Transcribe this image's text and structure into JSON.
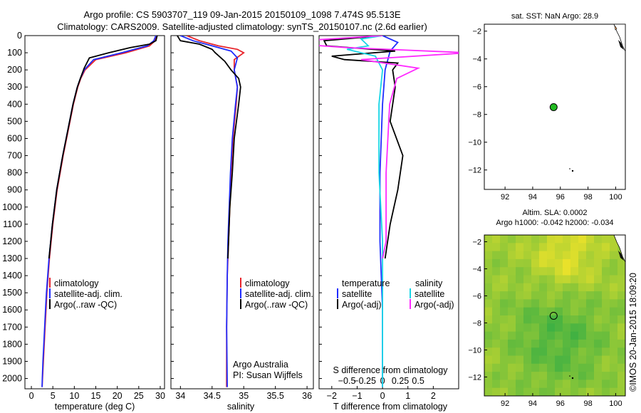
{
  "header": {
    "line1": "Argo profile: CS 5903707_119 09-Jan-2015 20150109_1098 7.474S 95.513E",
    "line2": "Climatology: CARS2009. Satellite-adjusted climatology: synTS_20150107.nc (2.6d earlier)"
  },
  "credit": "©IMOS 20-Jan-2015 18:09:20",
  "colors": {
    "climatology": "#e8232a",
    "satellite": "#1f2cff",
    "argo": "#000000",
    "sat_salinity": "#18d6e6",
    "argo_salinity": "#ff29ff"
  },
  "chart_data": [
    {
      "type": "line",
      "name": "temperature-profile",
      "xlabel": "temperature (deg C)",
      "ylabel": "",
      "xlim": [
        -1.5,
        31
      ],
      "ylim": [
        2060,
        0
      ],
      "xticks": [
        0,
        5,
        10,
        15,
        20,
        25,
        30
      ],
      "yticks": [
        0,
        100,
        200,
        300,
        400,
        500,
        600,
        700,
        800,
        900,
        1000,
        1100,
        1200,
        1300,
        1400,
        1500,
        1600,
        1700,
        1800,
        1900,
        2000
      ],
      "legend": {
        "position": "lower-middle",
        "entries": [
          "climatology",
          "satellite-adj. clim.",
          "Argo(..raw -QC)"
        ]
      },
      "series": [
        {
          "name": "climatology",
          "points": [
            [
              29.2,
              0
            ],
            [
              28.8,
              30
            ],
            [
              27.5,
              60
            ],
            [
              22,
              100
            ],
            [
              15,
              140
            ],
            [
              12.5,
              200
            ],
            [
              11.5,
              250
            ],
            [
              10.8,
              300
            ],
            [
              9.8,
              400
            ],
            [
              9.0,
              500
            ],
            [
              8.2,
              600
            ],
            [
              7.4,
              700
            ],
            [
              6.7,
              800
            ],
            [
              6.0,
              900
            ],
            [
              5.5,
              1000
            ],
            [
              5.0,
              1100
            ],
            [
              4.6,
              1200
            ],
            [
              4.2,
              1300
            ],
            [
              3.9,
              1400
            ],
            [
              3.6,
              1500
            ],
            [
              3.4,
              1600
            ],
            [
              3.2,
              1700
            ],
            [
              3.0,
              1800
            ],
            [
              2.8,
              1900
            ],
            [
              2.6,
              2000
            ],
            [
              2.5,
              2050
            ]
          ]
        },
        {
          "name": "satellite-adj. clim.",
          "points": [
            [
              29.0,
              0
            ],
            [
              28.5,
              30
            ],
            [
              27.0,
              60
            ],
            [
              21,
              100
            ],
            [
              14.5,
              140
            ],
            [
              12.3,
              200
            ],
            [
              11.4,
              250
            ],
            [
              10.7,
              300
            ],
            [
              9.7,
              400
            ],
            [
              8.9,
              500
            ],
            [
              8.1,
              600
            ],
            [
              7.3,
              700
            ],
            [
              6.6,
              800
            ],
            [
              5.9,
              900
            ],
            [
              5.4,
              1000
            ],
            [
              4.9,
              1100
            ],
            [
              4.5,
              1200
            ],
            [
              4.1,
              1300
            ],
            [
              3.8,
              1400
            ],
            [
              3.5,
              1500
            ],
            [
              3.3,
              1600
            ],
            [
              3.1,
              1700
            ],
            [
              2.9,
              1800
            ],
            [
              2.7,
              1900
            ],
            [
              2.55,
              2000
            ],
            [
              2.5,
              2050
            ]
          ]
        },
        {
          "name": "Argo(..raw -QC)",
          "points": [
            [
              29.3,
              0
            ],
            [
              29.0,
              30
            ],
            [
              27.5,
              50
            ],
            [
              23,
              70
            ],
            [
              18,
              100
            ],
            [
              13.5,
              130
            ],
            [
              12.3,
              190
            ],
            [
              11.4,
              250
            ],
            [
              10.7,
              300
            ],
            [
              9.7,
              400
            ],
            [
              8.9,
              500
            ],
            [
              8.1,
              600
            ],
            [
              7.3,
              700
            ],
            [
              6.6,
              800
            ],
            [
              5.9,
              900
            ],
            [
              5.4,
              1000
            ],
            [
              4.9,
              1100
            ],
            [
              4.5,
              1200
            ],
            [
              4.1,
              1300
            ]
          ]
        }
      ]
    },
    {
      "type": "line",
      "name": "salinity-profile",
      "xlabel": "salinity",
      "ylabel": "",
      "xlim": [
        33.85,
        36.1
      ],
      "ylim": [
        2060,
        0
      ],
      "xticks": [
        34,
        34.5,
        35,
        35.5,
        36
      ],
      "legend": {
        "position": "lower-middle",
        "entries": [
          "climatology",
          "satellite-adj. clim.",
          "Argo(..raw -QC)"
        ]
      },
      "annotation": [
        "Argo Australia",
        "PI: Susan Wijffels"
      ],
      "series": [
        {
          "name": "climatology",
          "points": [
            [
              34.1,
              0
            ],
            [
              34.3,
              30
            ],
            [
              34.6,
              60
            ],
            [
              34.9,
              80
            ],
            [
              35.0,
              100
            ],
            [
              34.85,
              140
            ],
            [
              34.85,
              200
            ],
            [
              34.9,
              300
            ],
            [
              34.88,
              400
            ],
            [
              34.83,
              600
            ],
            [
              34.8,
              800
            ],
            [
              34.78,
              1000
            ],
            [
              34.76,
              1200
            ],
            [
              34.74,
              1400
            ],
            [
              34.73,
              1700
            ],
            [
              34.73,
              2050
            ]
          ]
        },
        {
          "name": "satellite-adj. clim.",
          "points": [
            [
              34.0,
              0
            ],
            [
              34.2,
              30
            ],
            [
              34.5,
              60
            ],
            [
              34.8,
              90
            ],
            [
              34.9,
              130
            ],
            [
              34.85,
              200
            ],
            [
              34.9,
              300
            ],
            [
              34.87,
              400
            ],
            [
              34.82,
              600
            ],
            [
              34.79,
              800
            ],
            [
              34.77,
              1000
            ],
            [
              34.75,
              1200
            ],
            [
              34.74,
              1400
            ],
            [
              34.73,
              1700
            ],
            [
              34.74,
              2050
            ]
          ]
        },
        {
          "name": "Argo(..raw -QC)",
          "points": [
            [
              33.95,
              0
            ],
            [
              34.0,
              30
            ],
            [
              34.3,
              50
            ],
            [
              34.5,
              80
            ],
            [
              34.55,
              100
            ],
            [
              34.7,
              150
            ],
            [
              34.8,
              200
            ],
            [
              34.92,
              250
            ],
            [
              34.95,
              300
            ],
            [
              34.92,
              400
            ],
            [
              34.85,
              600
            ],
            [
              34.82,
              800
            ],
            [
              34.78,
              1000
            ],
            [
              34.76,
              1200
            ],
            [
              34.75,
              1300
            ]
          ]
        }
      ]
    },
    {
      "type": "line",
      "name": "difference-profile",
      "xlabel": "T difference from climatology",
      "top_label": "S difference from climatology",
      "ylabel": "",
      "xlim": [
        -2.5,
        3
      ],
      "ylim": [
        2060,
        0
      ],
      "xticks": [
        -2,
        -1,
        0,
        1,
        2
      ],
      "sticks": [
        -0.5,
        -0.25,
        0,
        0.25,
        0.5
      ],
      "legend": {
        "position": "lower-middle",
        "temperature_header": "temperature",
        "salinity_header": "salinity",
        "entries": [
          "satellite",
          "Argo(-adj)",
          "satellite",
          "Argo(-adj)"
        ]
      },
      "series": [
        {
          "name": "temperature satellite",
          "points": [
            [
              0,
              0
            ],
            [
              0.6,
              40
            ],
            [
              0.3,
              90
            ],
            [
              0.1,
              200
            ],
            [
              0,
              400
            ],
            [
              -0.1,
              800
            ],
            [
              -0.1,
              1200
            ],
            [
              0,
              1600
            ],
            [
              0,
              2050
            ]
          ]
        },
        {
          "name": "temperature Argo(-adj)",
          "points": [
            [
              0,
              0
            ],
            [
              -2.3,
              30
            ],
            [
              -2.2,
              60
            ],
            [
              0.5,
              90
            ],
            [
              -2.0,
              120
            ],
            [
              -1.5,
              140
            ],
            [
              0.6,
              160
            ],
            [
              0.4,
              200
            ],
            [
              0.5,
              300
            ],
            [
              0.3,
              500
            ],
            [
              0.8,
              700
            ],
            [
              0.6,
              900
            ],
            [
              0.3,
              1100
            ],
            [
              0.1,
              1300
            ]
          ]
        },
        {
          "name": "salinity satellite",
          "points": [
            [
              0,
              0
            ],
            [
              -0.3,
              20
            ],
            [
              -0.2,
              60
            ],
            [
              -0.5,
              80
            ],
            [
              -0.1,
              120
            ],
            [
              0,
              200
            ],
            [
              -0.05,
              400
            ],
            [
              -0.05,
              800
            ],
            [
              0,
              1200
            ],
            [
              0,
              1600
            ],
            [
              0,
              2050
            ]
          ]
        },
        {
          "name": "salinity Argo(-adj)",
          "points": [
            [
              0,
              0
            ],
            [
              -1.5,
              40
            ],
            [
              -0.5,
              70
            ],
            [
              1.2,
              100
            ],
            [
              -0.3,
              140
            ],
            [
              0.5,
              190
            ],
            [
              0.2,
              250
            ],
            [
              0.1,
              400
            ],
            [
              0.05,
              800
            ],
            [
              0.05,
              1200
            ],
            [
              0,
              1300
            ]
          ]
        }
      ]
    },
    {
      "type": "scatter",
      "name": "sst-map",
      "title": "sat. SST: NaN Argo: 28.9",
      "xlim": [
        90.5,
        100.7
      ],
      "ylim": [
        -13.4,
        -1.5
      ],
      "xticks": [
        92,
        94,
        96,
        98,
        100
      ],
      "yticks": [
        -2,
        -4,
        -6,
        -8,
        -10,
        -12
      ],
      "points": [
        {
          "x": 95.513,
          "y": -7.474
        }
      ]
    },
    {
      "type": "heatmap",
      "name": "sla-map",
      "title_line1": "Altim. SLA: 0.0002",
      "title_line2": "Argo h1000: -0.042 h2000: -0.034",
      "xlim": [
        90.5,
        100.7
      ],
      "ylim": [
        -13.4,
        -1.5
      ],
      "xticks": [
        92,
        94,
        96,
        98,
        100
      ],
      "yticks": [
        -2,
        -4,
        -6,
        -8,
        -10,
        -12
      ],
      "points": [
        {
          "x": 95.513,
          "y": -7.474
        }
      ]
    }
  ]
}
